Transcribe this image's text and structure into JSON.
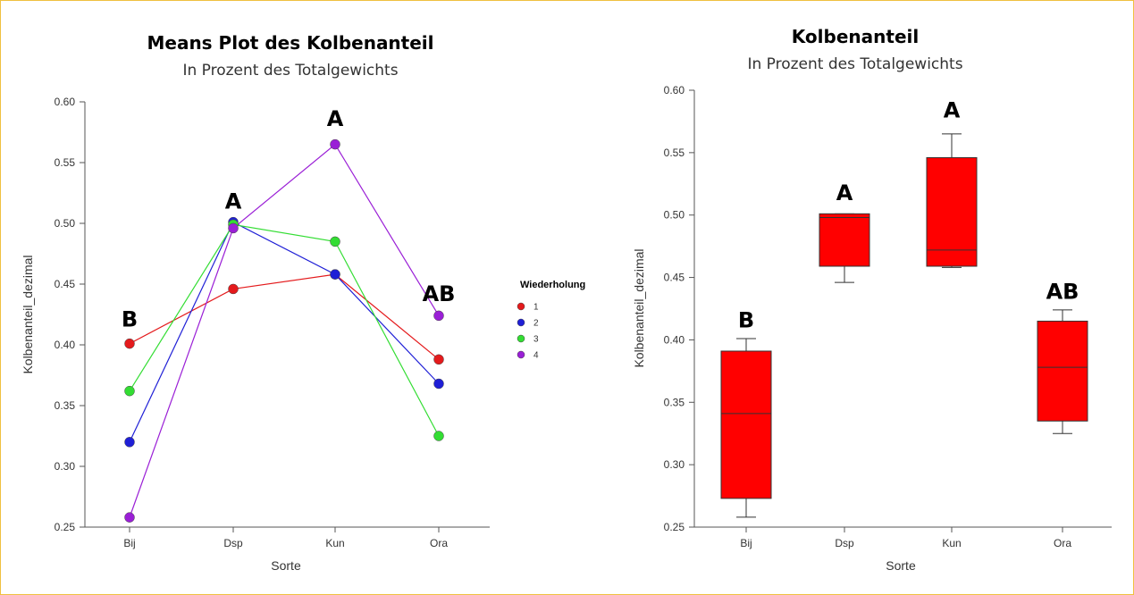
{
  "chart_data": [
    {
      "type": "line",
      "title": "Means Plot des Kolbenanteil",
      "subtitle": "In Prozent des Totalgewichts",
      "xlabel": "Sorte",
      "ylabel": "Kolbenanteil_dezimal",
      "categories": [
        "Bij",
        "Dsp",
        "Kun",
        "Ora"
      ],
      "ylim": [
        0.25,
        0.6
      ],
      "yticks": [
        "0.25",
        "0.30",
        "0.35",
        "0.40",
        "0.45",
        "0.50",
        "0.55",
        "0.60"
      ],
      "legend_title": "Wiederholung",
      "legend_position": "right",
      "series": [
        {
          "name": "1",
          "color": "#e41a1c",
          "values": [
            0.401,
            0.446,
            0.458,
            0.388
          ]
        },
        {
          "name": "2",
          "color": "#1f1fd6",
          "values": [
            0.32,
            0.501,
            0.458,
            0.368
          ]
        },
        {
          "name": "3",
          "color": "#33dd33",
          "values": [
            0.362,
            0.499,
            0.485,
            0.325
          ]
        },
        {
          "name": "4",
          "color": "#9a1fd6",
          "values": [
            0.258,
            0.496,
            0.565,
            0.424
          ]
        }
      ],
      "group_letters": [
        {
          "category": "Bij",
          "text": "B",
          "y": 0.415
        },
        {
          "category": "Dsp",
          "text": "A",
          "y": 0.512
        },
        {
          "category": "Kun",
          "text": "A",
          "y": 0.58
        },
        {
          "category": "Ora",
          "text": "AB",
          "y": 0.436
        }
      ]
    },
    {
      "type": "box",
      "title": "Kolbenanteil",
      "subtitle": "In Prozent des Totalgewichts",
      "xlabel": "Sorte",
      "ylabel": "Kolbenanteil_dezimal",
      "categories": [
        "Bij",
        "Dsp",
        "Kun",
        "Ora"
      ],
      "ylim": [
        0.25,
        0.6
      ],
      "yticks": [
        "0.25",
        "0.30",
        "0.35",
        "0.40",
        "0.45",
        "0.50",
        "0.55",
        "0.60"
      ],
      "box_color": "#ff0000",
      "boxes": [
        {
          "category": "Bij",
          "min": 0.258,
          "q1": 0.273,
          "median": 0.341,
          "q3": 0.391,
          "max": 0.401
        },
        {
          "category": "Dsp",
          "min": 0.446,
          "q1": 0.459,
          "median": 0.498,
          "q3": 0.501,
          "max": 0.501
        },
        {
          "category": "Kun",
          "min": 0.458,
          "q1": 0.459,
          "median": 0.472,
          "q3": 0.546,
          "max": 0.565
        },
        {
          "category": "Ora",
          "min": 0.325,
          "q1": 0.335,
          "median": 0.378,
          "q3": 0.415,
          "max": 0.424
        }
      ],
      "group_letters": [
        {
          "category": "Bij",
          "text": "B",
          "y": 0.41
        },
        {
          "category": "Dsp",
          "text": "A",
          "y": 0.512
        },
        {
          "category": "Kun",
          "text": "A",
          "y": 0.578
        },
        {
          "category": "Ora",
          "text": "AB",
          "y": 0.433
        }
      ]
    }
  ]
}
